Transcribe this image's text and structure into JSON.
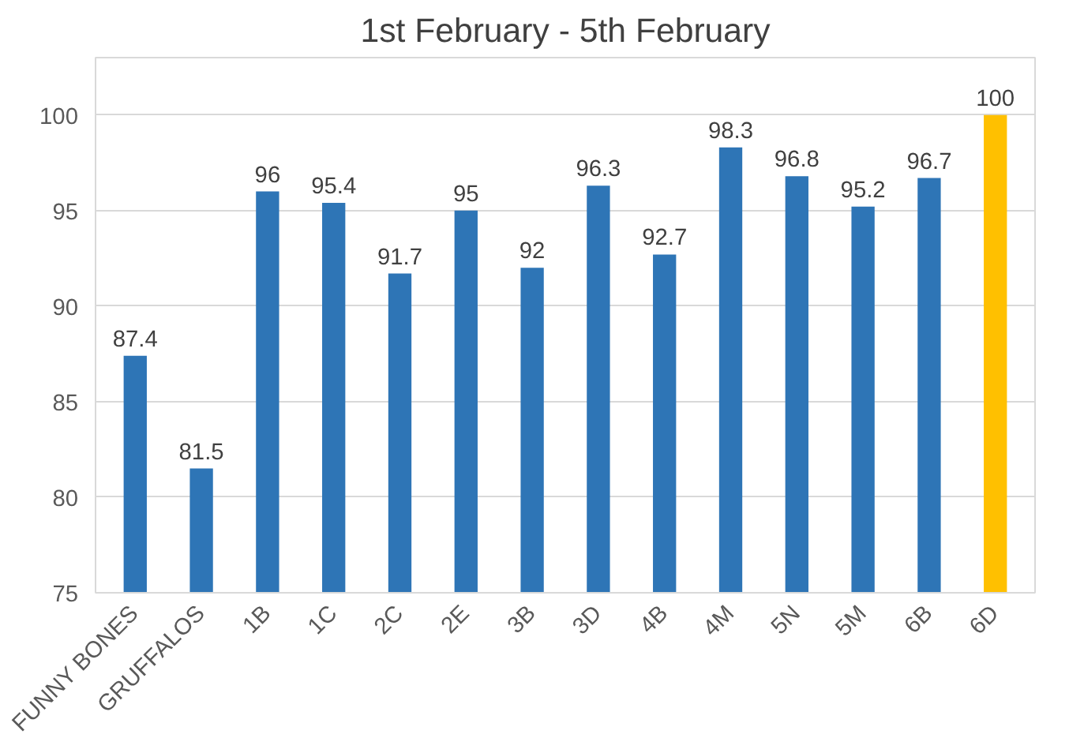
{
  "chart_data": {
    "type": "bar",
    "title": "1st February - 5th February",
    "categories": [
      "FUNNY BONES",
      "GRUFFALOS",
      "1B",
      "1C",
      "2C",
      "2E",
      "3B",
      "3D",
      "4B",
      "4M",
      "5N",
      "5M",
      "6B",
      "6D"
    ],
    "values": [
      87.4,
      81.5,
      96,
      95.4,
      91.7,
      95,
      92,
      96.3,
      92.7,
      98.3,
      96.8,
      95.2,
      96.7,
      100
    ],
    "colors": [
      "#2e75b6",
      "#2e75b6",
      "#2e75b6",
      "#2e75b6",
      "#2e75b6",
      "#2e75b6",
      "#2e75b6",
      "#2e75b6",
      "#2e75b6",
      "#2e75b6",
      "#2e75b6",
      "#2e75b6",
      "#2e75b6",
      "#ffc000"
    ],
    "ylim": [
      75,
      100
    ],
    "yticks": [
      75,
      80,
      85,
      90,
      95,
      100
    ],
    "grid": "y",
    "data_labels": true
  }
}
